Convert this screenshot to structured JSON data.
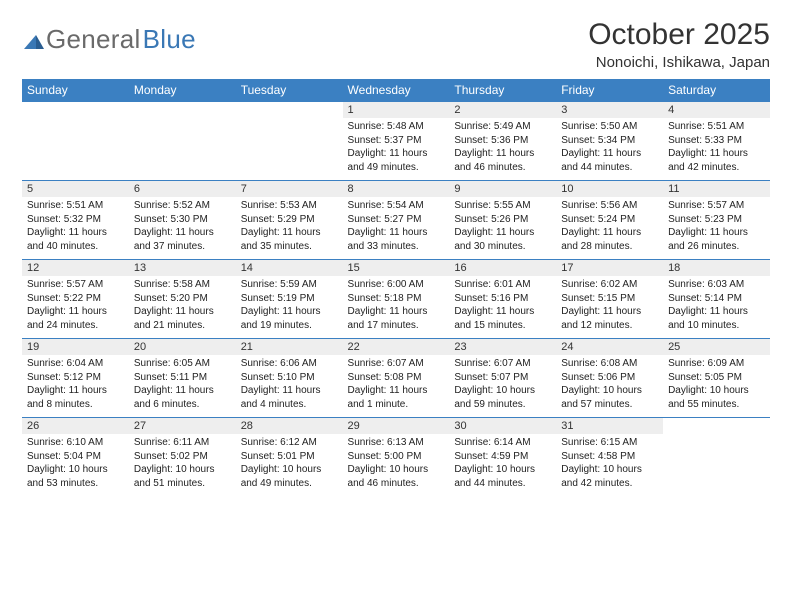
{
  "logo": {
    "part1": "General",
    "part2": "Blue"
  },
  "title": "October 2025",
  "location": "Nonoichi, Ishikawa, Japan",
  "colors": {
    "header_bg": "#3b80c2",
    "header_text": "#ffffff",
    "daynum_bg": "#eeeeee",
    "border": "#3b80c2",
    "logo_gray": "#6a6a6a",
    "logo_blue": "#3a78b5"
  },
  "weekdays": [
    "Sunday",
    "Monday",
    "Tuesday",
    "Wednesday",
    "Thursday",
    "Friday",
    "Saturday"
  ],
  "weeks": [
    [
      null,
      null,
      null,
      {
        "n": "1",
        "sr": "Sunrise: 5:48 AM",
        "ss": "Sunset: 5:37 PM",
        "d1": "Daylight: 11 hours",
        "d2": "and 49 minutes."
      },
      {
        "n": "2",
        "sr": "Sunrise: 5:49 AM",
        "ss": "Sunset: 5:36 PM",
        "d1": "Daylight: 11 hours",
        "d2": "and 46 minutes."
      },
      {
        "n": "3",
        "sr": "Sunrise: 5:50 AM",
        "ss": "Sunset: 5:34 PM",
        "d1": "Daylight: 11 hours",
        "d2": "and 44 minutes."
      },
      {
        "n": "4",
        "sr": "Sunrise: 5:51 AM",
        "ss": "Sunset: 5:33 PM",
        "d1": "Daylight: 11 hours",
        "d2": "and 42 minutes."
      }
    ],
    [
      {
        "n": "5",
        "sr": "Sunrise: 5:51 AM",
        "ss": "Sunset: 5:32 PM",
        "d1": "Daylight: 11 hours",
        "d2": "and 40 minutes."
      },
      {
        "n": "6",
        "sr": "Sunrise: 5:52 AM",
        "ss": "Sunset: 5:30 PM",
        "d1": "Daylight: 11 hours",
        "d2": "and 37 minutes."
      },
      {
        "n": "7",
        "sr": "Sunrise: 5:53 AM",
        "ss": "Sunset: 5:29 PM",
        "d1": "Daylight: 11 hours",
        "d2": "and 35 minutes."
      },
      {
        "n": "8",
        "sr": "Sunrise: 5:54 AM",
        "ss": "Sunset: 5:27 PM",
        "d1": "Daylight: 11 hours",
        "d2": "and 33 minutes."
      },
      {
        "n": "9",
        "sr": "Sunrise: 5:55 AM",
        "ss": "Sunset: 5:26 PM",
        "d1": "Daylight: 11 hours",
        "d2": "and 30 minutes."
      },
      {
        "n": "10",
        "sr": "Sunrise: 5:56 AM",
        "ss": "Sunset: 5:24 PM",
        "d1": "Daylight: 11 hours",
        "d2": "and 28 minutes."
      },
      {
        "n": "11",
        "sr": "Sunrise: 5:57 AM",
        "ss": "Sunset: 5:23 PM",
        "d1": "Daylight: 11 hours",
        "d2": "and 26 minutes."
      }
    ],
    [
      {
        "n": "12",
        "sr": "Sunrise: 5:57 AM",
        "ss": "Sunset: 5:22 PM",
        "d1": "Daylight: 11 hours",
        "d2": "and 24 minutes."
      },
      {
        "n": "13",
        "sr": "Sunrise: 5:58 AM",
        "ss": "Sunset: 5:20 PM",
        "d1": "Daylight: 11 hours",
        "d2": "and 21 minutes."
      },
      {
        "n": "14",
        "sr": "Sunrise: 5:59 AM",
        "ss": "Sunset: 5:19 PM",
        "d1": "Daylight: 11 hours",
        "d2": "and 19 minutes."
      },
      {
        "n": "15",
        "sr": "Sunrise: 6:00 AM",
        "ss": "Sunset: 5:18 PM",
        "d1": "Daylight: 11 hours",
        "d2": "and 17 minutes."
      },
      {
        "n": "16",
        "sr": "Sunrise: 6:01 AM",
        "ss": "Sunset: 5:16 PM",
        "d1": "Daylight: 11 hours",
        "d2": "and 15 minutes."
      },
      {
        "n": "17",
        "sr": "Sunrise: 6:02 AM",
        "ss": "Sunset: 5:15 PM",
        "d1": "Daylight: 11 hours",
        "d2": "and 12 minutes."
      },
      {
        "n": "18",
        "sr": "Sunrise: 6:03 AM",
        "ss": "Sunset: 5:14 PM",
        "d1": "Daylight: 11 hours",
        "d2": "and 10 minutes."
      }
    ],
    [
      {
        "n": "19",
        "sr": "Sunrise: 6:04 AM",
        "ss": "Sunset: 5:12 PM",
        "d1": "Daylight: 11 hours",
        "d2": "and 8 minutes."
      },
      {
        "n": "20",
        "sr": "Sunrise: 6:05 AM",
        "ss": "Sunset: 5:11 PM",
        "d1": "Daylight: 11 hours",
        "d2": "and 6 minutes."
      },
      {
        "n": "21",
        "sr": "Sunrise: 6:06 AM",
        "ss": "Sunset: 5:10 PM",
        "d1": "Daylight: 11 hours",
        "d2": "and 4 minutes."
      },
      {
        "n": "22",
        "sr": "Sunrise: 6:07 AM",
        "ss": "Sunset: 5:08 PM",
        "d1": "Daylight: 11 hours",
        "d2": "and 1 minute."
      },
      {
        "n": "23",
        "sr": "Sunrise: 6:07 AM",
        "ss": "Sunset: 5:07 PM",
        "d1": "Daylight: 10 hours",
        "d2": "and 59 minutes."
      },
      {
        "n": "24",
        "sr": "Sunrise: 6:08 AM",
        "ss": "Sunset: 5:06 PM",
        "d1": "Daylight: 10 hours",
        "d2": "and 57 minutes."
      },
      {
        "n": "25",
        "sr": "Sunrise: 6:09 AM",
        "ss": "Sunset: 5:05 PM",
        "d1": "Daylight: 10 hours",
        "d2": "and 55 minutes."
      }
    ],
    [
      {
        "n": "26",
        "sr": "Sunrise: 6:10 AM",
        "ss": "Sunset: 5:04 PM",
        "d1": "Daylight: 10 hours",
        "d2": "and 53 minutes."
      },
      {
        "n": "27",
        "sr": "Sunrise: 6:11 AM",
        "ss": "Sunset: 5:02 PM",
        "d1": "Daylight: 10 hours",
        "d2": "and 51 minutes."
      },
      {
        "n": "28",
        "sr": "Sunrise: 6:12 AM",
        "ss": "Sunset: 5:01 PM",
        "d1": "Daylight: 10 hours",
        "d2": "and 49 minutes."
      },
      {
        "n": "29",
        "sr": "Sunrise: 6:13 AM",
        "ss": "Sunset: 5:00 PM",
        "d1": "Daylight: 10 hours",
        "d2": "and 46 minutes."
      },
      {
        "n": "30",
        "sr": "Sunrise: 6:14 AM",
        "ss": "Sunset: 4:59 PM",
        "d1": "Daylight: 10 hours",
        "d2": "and 44 minutes."
      },
      {
        "n": "31",
        "sr": "Sunrise: 6:15 AM",
        "ss": "Sunset: 4:58 PM",
        "d1": "Daylight: 10 hours",
        "d2": "and 42 minutes."
      },
      null
    ]
  ]
}
